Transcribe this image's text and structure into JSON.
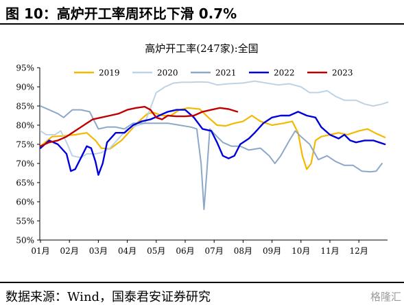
{
  "figure": {
    "title": "图 10：高炉开工率周环比下滑 0.7%",
    "source": "数据来源：Wind，国泰君安证券研究"
  },
  "chart_data": {
    "type": "line",
    "title": "高炉开工率(247家):全国",
    "xlabel": "",
    "ylabel": "",
    "x_ticks": [
      "01月",
      "02月",
      "03月",
      "04月",
      "05月",
      "06月",
      "07月",
      "08月",
      "09月",
      "10月",
      "11月",
      "12月"
    ],
    "y_ticks": [
      "50%",
      "55%",
      "60%",
      "65%",
      "70%",
      "75%",
      "80%",
      "85%",
      "90%",
      "95%"
    ],
    "xlim": [
      1,
      12.5
    ],
    "ylim": [
      50,
      95
    ],
    "grid": false,
    "legend": "top",
    "series": [
      {
        "name": "2019",
        "color": "#f5b800",
        "width": 2.2,
        "points": [
          [
            1,
            74.5
          ],
          [
            1.4,
            77
          ],
          [
            1.8,
            77.2
          ],
          [
            2.2,
            77.5
          ],
          [
            2.6,
            78
          ],
          [
            2.9,
            76
          ],
          [
            3.1,
            74
          ],
          [
            3.4,
            73.8
          ],
          [
            3.8,
            76
          ],
          [
            4.1,
            78.5
          ],
          [
            4.4,
            81
          ],
          [
            4.7,
            83
          ],
          [
            4.9,
            83.3
          ],
          [
            5.2,
            82.5
          ],
          [
            5.5,
            82.5
          ],
          [
            5.8,
            84
          ],
          [
            6.1,
            84.5
          ],
          [
            6.5,
            84.2
          ],
          [
            6.8,
            82
          ],
          [
            7.1,
            80
          ],
          [
            7.4,
            79.8
          ],
          [
            7.7,
            80.5
          ],
          [
            8,
            81
          ],
          [
            8.3,
            82.5
          ],
          [
            8.6,
            81
          ],
          [
            9,
            80
          ],
          [
            9.4,
            80.5
          ],
          [
            9.7,
            81
          ],
          [
            9.9,
            78
          ],
          [
            10.05,
            72
          ],
          [
            10.2,
            68.5
          ],
          [
            10.35,
            70
          ],
          [
            10.5,
            76
          ],
          [
            10.7,
            77
          ],
          [
            11,
            77.5
          ],
          [
            11.3,
            78
          ],
          [
            11.6,
            77.5
          ],
          [
            12,
            78.5
          ],
          [
            12.3,
            79
          ],
          [
            12.6,
            77.8
          ],
          [
            12.9,
            76.8
          ]
        ]
      },
      {
        "name": "2020",
        "color": "#bdd3e5",
        "width": 2,
        "points": [
          [
            1,
            78.5
          ],
          [
            1.2,
            77.5
          ],
          [
            1.5,
            77.5
          ],
          [
            1.7,
            78.5
          ],
          [
            1.9,
            75.5
          ],
          [
            2.1,
            72
          ],
          [
            2.4,
            71.5
          ],
          [
            2.6,
            72.5
          ],
          [
            2.9,
            72.5
          ],
          [
            3.1,
            72.8
          ],
          [
            3.4,
            74
          ],
          [
            3.7,
            76.5
          ],
          [
            4,
            79
          ],
          [
            4.3,
            79.8
          ],
          [
            4.6,
            80.5
          ],
          [
            4.8,
            84.5
          ],
          [
            5,
            88.5
          ],
          [
            5.3,
            90
          ],
          [
            5.6,
            91
          ],
          [
            5.9,
            91.2
          ],
          [
            6.2,
            91.2
          ],
          [
            6.5,
            91.3
          ],
          [
            6.8,
            91.2
          ],
          [
            7.1,
            90.5
          ],
          [
            7.5,
            90.8
          ],
          [
            8,
            91
          ],
          [
            8.4,
            91.5
          ],
          [
            8.8,
            91
          ],
          [
            9.2,
            90.5
          ],
          [
            9.6,
            90.8
          ],
          [
            10,
            90
          ],
          [
            10.3,
            88.5
          ],
          [
            10.6,
            88.5
          ],
          [
            10.9,
            89
          ],
          [
            11.2,
            87.5
          ],
          [
            11.5,
            86.5
          ],
          [
            11.9,
            86.5
          ],
          [
            12.2,
            85.5
          ],
          [
            12.5,
            85
          ],
          [
            12.8,
            85.5
          ],
          [
            13,
            86
          ]
        ]
      },
      {
        "name": "2021",
        "color": "#8ca7c7",
        "width": 2,
        "points": [
          [
            1,
            85
          ],
          [
            1.3,
            84
          ],
          [
            1.6,
            83
          ],
          [
            1.8,
            82
          ],
          [
            2.1,
            84
          ],
          [
            2.4,
            84
          ],
          [
            2.7,
            83.5
          ],
          [
            3,
            79
          ],
          [
            3.3,
            79.5
          ],
          [
            3.6,
            79.5
          ],
          [
            3.9,
            79
          ],
          [
            4.2,
            80.5
          ],
          [
            4.6,
            80.5
          ],
          [
            5,
            80.5
          ],
          [
            5.4,
            80.5
          ],
          [
            5.8,
            80
          ],
          [
            6.2,
            79.5
          ],
          [
            6.4,
            79
          ],
          [
            6.55,
            70
          ],
          [
            6.65,
            58
          ],
          [
            6.75,
            68
          ],
          [
            6.85,
            79
          ],
          [
            7.1,
            77
          ],
          [
            7.3,
            75.5
          ],
          [
            7.6,
            74.5
          ],
          [
            7.9,
            74.5
          ],
          [
            8.2,
            73.5
          ],
          [
            8.6,
            74
          ],
          [
            8.9,
            72
          ],
          [
            9.1,
            70
          ],
          [
            9.3,
            72
          ],
          [
            9.6,
            76
          ],
          [
            9.8,
            78.5
          ],
          [
            10,
            77
          ],
          [
            10.3,
            75
          ],
          [
            10.6,
            71
          ],
          [
            10.9,
            72
          ],
          [
            11.2,
            70.5
          ],
          [
            11.5,
            69.5
          ],
          [
            11.8,
            69.5
          ],
          [
            12.1,
            68
          ],
          [
            12.4,
            67.8
          ],
          [
            12.6,
            68
          ],
          [
            12.8,
            70
          ]
        ]
      },
      {
        "name": "2022",
        "color": "#0000dd",
        "width": 2.4,
        "points": [
          [
            1,
            74
          ],
          [
            1.3,
            76
          ],
          [
            1.6,
            75
          ],
          [
            1.9,
            72.5
          ],
          [
            2.05,
            68
          ],
          [
            2.2,
            68.5
          ],
          [
            2.4,
            71.5
          ],
          [
            2.6,
            74.5
          ],
          [
            2.75,
            74
          ],
          [
            2.9,
            70.5
          ],
          [
            3,
            67
          ],
          [
            3.15,
            70
          ],
          [
            3.3,
            75.5
          ],
          [
            3.6,
            78
          ],
          [
            3.9,
            78
          ],
          [
            4.2,
            80
          ],
          [
            4.5,
            81
          ],
          [
            4.8,
            81.5
          ],
          [
            5.1,
            82.5
          ],
          [
            5.4,
            83.5
          ],
          [
            5.7,
            84
          ],
          [
            6,
            84
          ],
          [
            6.3,
            82
          ],
          [
            6.6,
            79
          ],
          [
            6.9,
            78.5
          ],
          [
            7.1,
            75.5
          ],
          [
            7.3,
            72
          ],
          [
            7.5,
            71.3
          ],
          [
            7.7,
            72
          ],
          [
            7.9,
            75
          ],
          [
            8.2,
            76.5
          ],
          [
            8.4,
            78
          ],
          [
            8.7,
            80.5
          ],
          [
            9,
            82
          ],
          [
            9.3,
            82.5
          ],
          [
            9.6,
            82.5
          ],
          [
            9.9,
            83.5
          ],
          [
            10.2,
            82.5
          ],
          [
            10.5,
            82
          ],
          [
            10.7,
            79.5
          ],
          [
            11,
            77.5
          ],
          [
            11.3,
            76.5
          ],
          [
            11.5,
            77.5
          ],
          [
            11.7,
            76
          ],
          [
            11.9,
            75.5
          ],
          [
            12.2,
            76
          ],
          [
            12.5,
            76
          ],
          [
            12.7,
            75.5
          ],
          [
            12.9,
            75
          ]
        ]
      },
      {
        "name": "2023",
        "color": "#c00000",
        "width": 2.4,
        "points": [
          [
            1,
            74.5
          ],
          [
            1.3,
            75.5
          ],
          [
            1.6,
            76
          ],
          [
            1.9,
            77
          ],
          [
            2.2,
            78.5
          ],
          [
            2.5,
            80
          ],
          [
            2.8,
            81.5
          ],
          [
            3.1,
            82
          ],
          [
            3.4,
            82.5
          ],
          [
            3.7,
            83
          ],
          [
            4,
            84
          ],
          [
            4.3,
            84.5
          ],
          [
            4.6,
            84.8
          ],
          [
            4.8,
            84
          ],
          [
            5,
            82
          ],
          [
            5.2,
            81.5
          ],
          [
            5.4,
            82.5
          ],
          [
            5.7,
            82.3
          ],
          [
            6,
            82.3
          ],
          [
            6.3,
            82.5
          ],
          [
            6.6,
            83.5
          ],
          [
            6.9,
            84
          ],
          [
            7.2,
            84.5
          ],
          [
            7.5,
            84.2
          ],
          [
            7.8,
            83.5
          ]
        ]
      }
    ]
  },
  "watermark": "格隆汇"
}
